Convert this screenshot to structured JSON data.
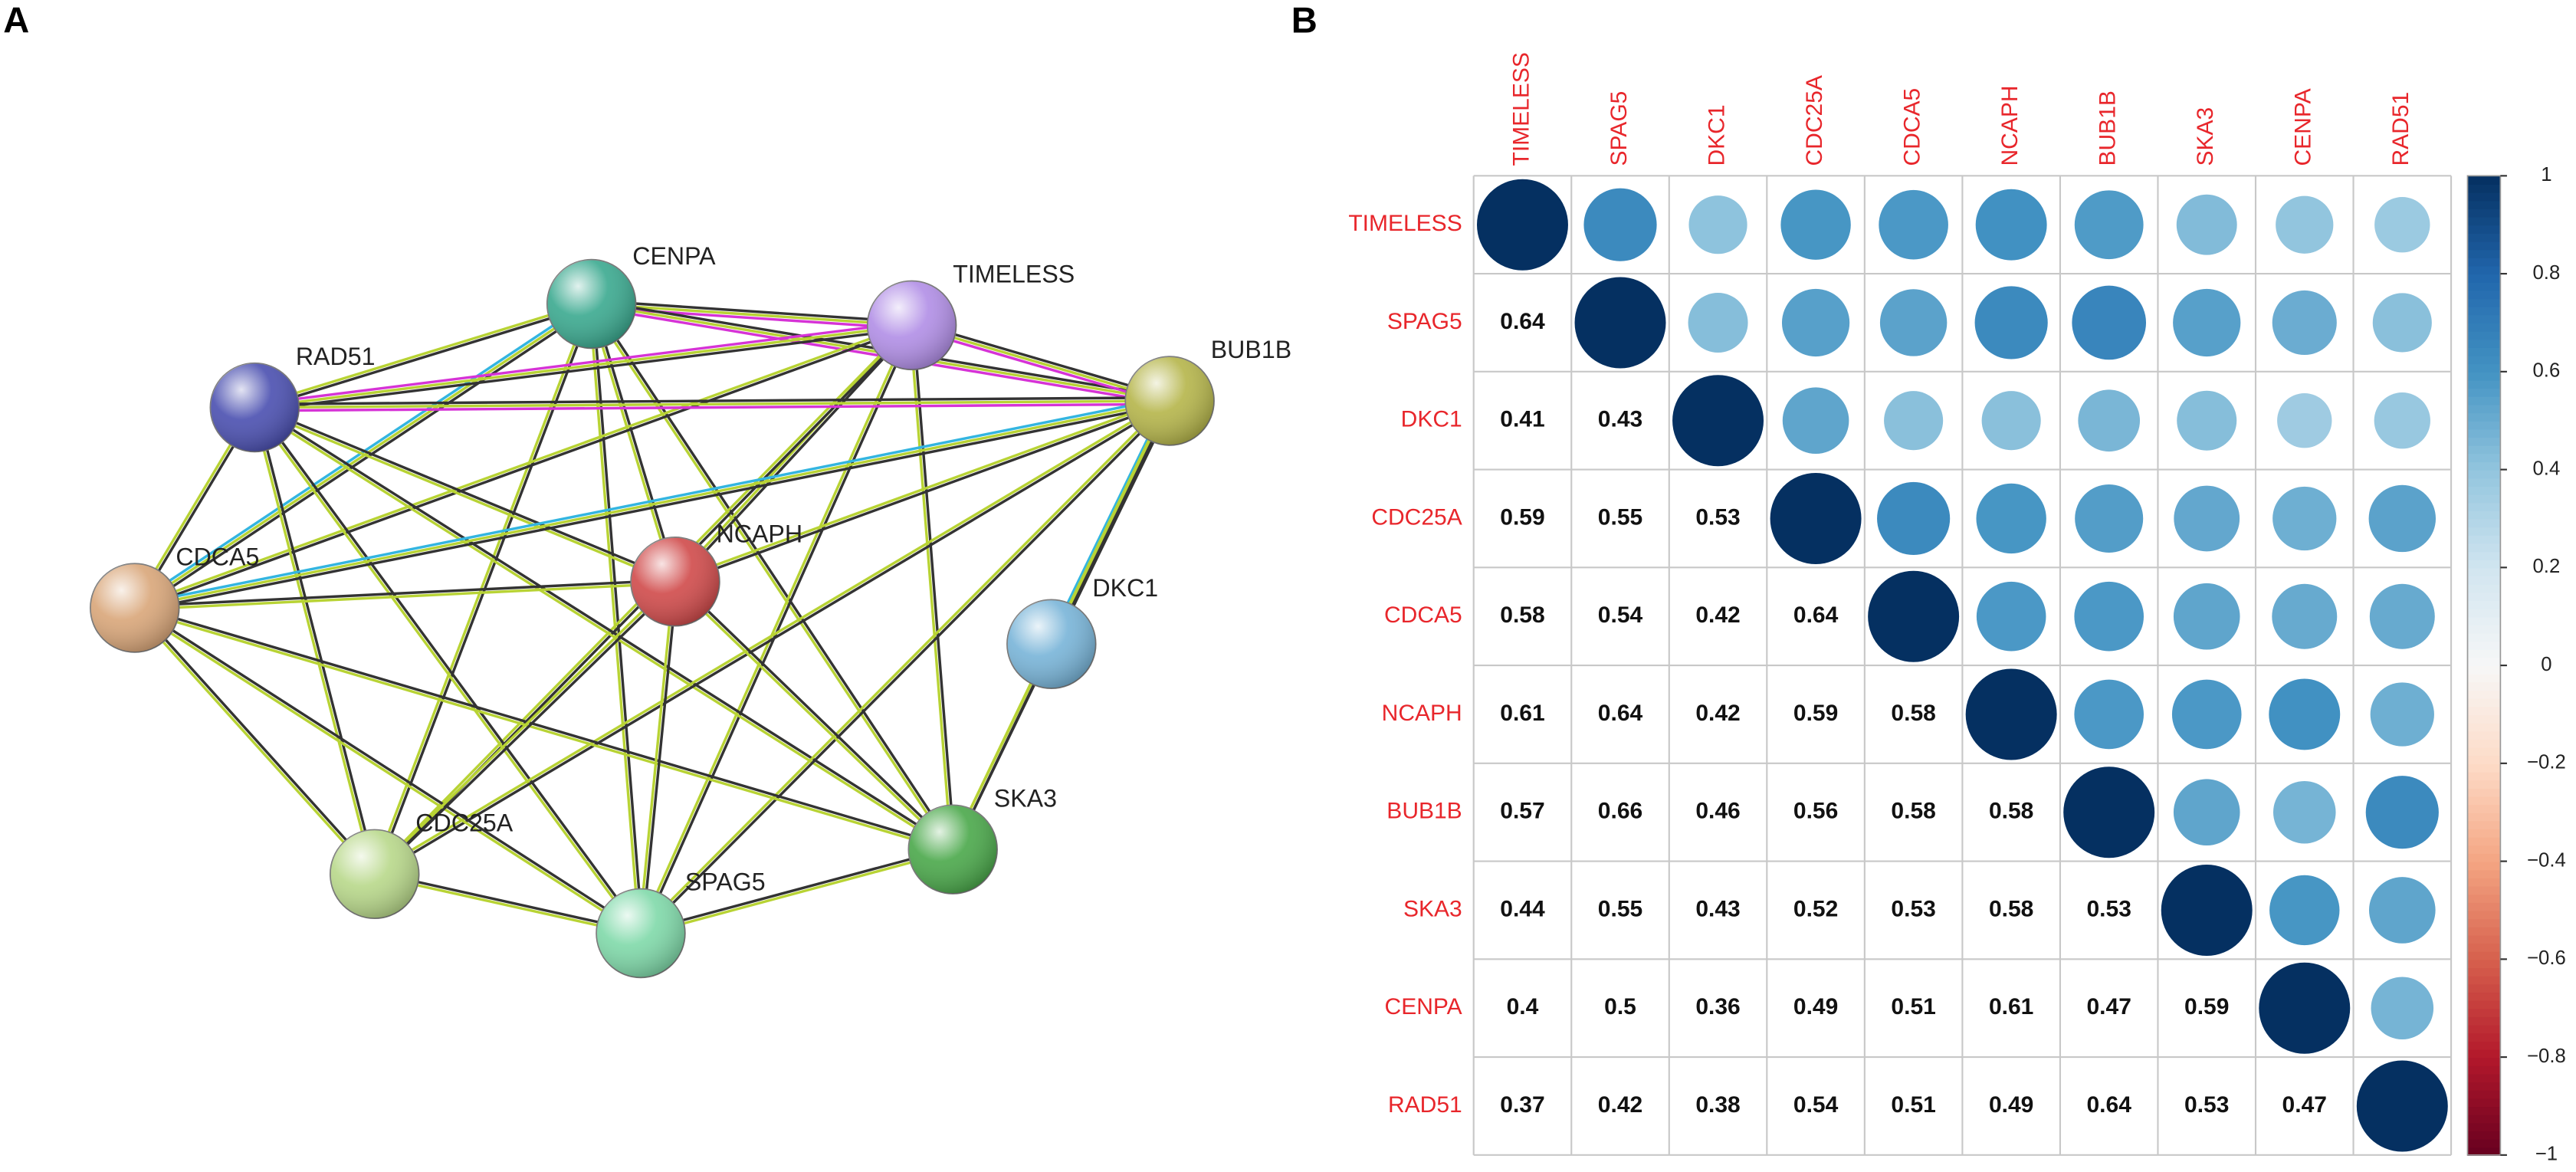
{
  "panels": [
    "A",
    "B"
  ],
  "network": {
    "nodes": [
      "CENPA",
      "TIMELESS",
      "RAD51",
      "BUB1B",
      "CDCA5",
      "NCAPH",
      "DKC1",
      "CDC25A",
      "SPAG5",
      "SKA3"
    ],
    "edges": [
      [
        0,
        1
      ],
      [
        0,
        2
      ],
      [
        0,
        3
      ],
      [
        0,
        4
      ],
      [
        0,
        5
      ],
      [
        0,
        7
      ],
      [
        0,
        8
      ],
      [
        0,
        9
      ],
      [
        1,
        2
      ],
      [
        1,
        3
      ],
      [
        1,
        4
      ],
      [
        1,
        5
      ],
      [
        1,
        7
      ],
      [
        1,
        8
      ],
      [
        1,
        9
      ],
      [
        2,
        3
      ],
      [
        2,
        4
      ],
      [
        2,
        5
      ],
      [
        2,
        7
      ],
      [
        2,
        8
      ],
      [
        2,
        9
      ],
      [
        3,
        4
      ],
      [
        3,
        5
      ],
      [
        3,
        6
      ],
      [
        3,
        7
      ],
      [
        3,
        8
      ],
      [
        3,
        9
      ],
      [
        4,
        5
      ],
      [
        4,
        7
      ],
      [
        4,
        8
      ],
      [
        4,
        9
      ],
      [
        5,
        7
      ],
      [
        5,
        8
      ],
      [
        5,
        9
      ],
      [
        6,
        9
      ],
      [
        7,
        8
      ],
      [
        8,
        9
      ]
    ]
  },
  "chart_data": {
    "type": "corrplot",
    "categories": [
      "TIMELESS",
      "SPAG5",
      "DKC1",
      "CDC25A",
      "CDCA5",
      "NCAPH",
      "BUB1B",
      "SKA3",
      "CENPA",
      "RAD51"
    ],
    "values": [
      [
        1
      ],
      [
        0.64,
        1
      ],
      [
        0.41,
        0.43,
        1
      ],
      [
        0.59,
        0.55,
        0.53,
        1
      ],
      [
        0.58,
        0.54,
        0.42,
        0.64,
        1
      ],
      [
        0.61,
        0.64,
        0.42,
        0.59,
        0.58,
        1
      ],
      [
        0.57,
        0.66,
        0.46,
        0.56,
        0.58,
        0.58,
        1
      ],
      [
        0.44,
        0.55,
        0.43,
        0.52,
        0.53,
        0.58,
        0.53,
        1
      ],
      [
        0.4,
        0.5,
        0.36,
        0.49,
        0.51,
        0.61,
        0.47,
        0.59,
        1
      ],
      [
        0.37,
        0.42,
        0.38,
        0.54,
        0.51,
        0.49,
        0.64,
        0.53,
        0.47,
        1
      ]
    ],
    "clim": [
      -1,
      1
    ],
    "cticks": [
      1,
      0.8,
      0.6,
      0.4,
      0.2,
      0,
      {
        "value": -0.2,
        "label": "−0.2"
      },
      {
        "value": -0.4,
        "label": "−0.4"
      },
      {
        "value": -0.6,
        "label": "−0.6"
      },
      {
        "value": -0.8,
        "label": "−0.8"
      },
      {
        "value": -1,
        "label": "−1"
      }
    ],
    "colorscale": [
      "#67001f",
      "#b2182b",
      "#d6604d",
      "#f4a582",
      "#fddbc7",
      "#f7f7f7",
      "#d1e5f0",
      "#92c5de",
      "#4393c3",
      "#2166ac",
      "#053061"
    ],
    "label_color": "#e8262b"
  }
}
